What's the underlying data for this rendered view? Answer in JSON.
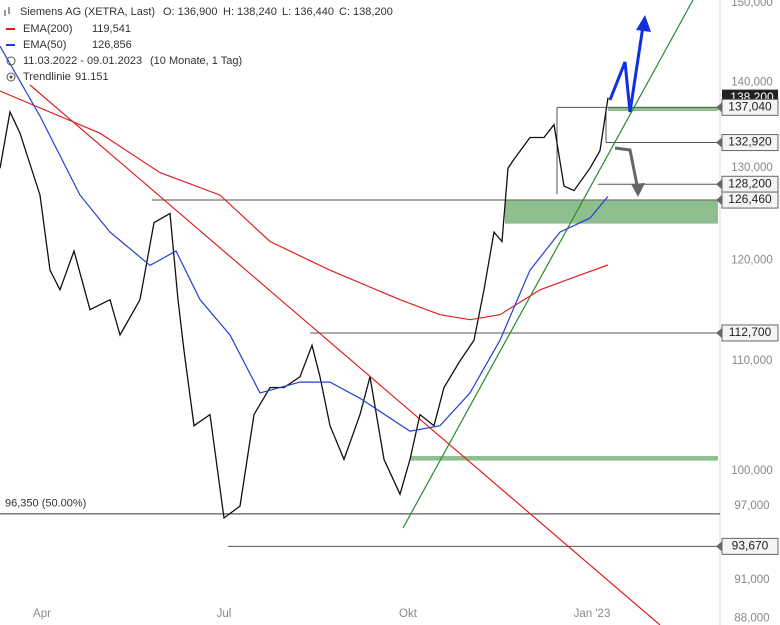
{
  "chart_data": {
    "type": "line",
    "header": {
      "title": "Siemens AG (XETRA, Last)",
      "open": "O: 136,900",
      "high": "H: 138,240",
      "low": "L: 136,440",
      "close": "C: 138,200",
      "period": "11.03.2022 - 09.01.2023",
      "period_note": "(10 Monate, 1 Tag)",
      "trend_name": "Trendlinie",
      "trend_value": "91.151"
    },
    "x": [
      0,
      5,
      10,
      20,
      25,
      30,
      37,
      45,
      55,
      60,
      70,
      77,
      85,
      89,
      92,
      97,
      105,
      112,
      120,
      127,
      135,
      142,
      150,
      156,
      160,
      165,
      172,
      180,
      185,
      192,
      200,
      205,
      210,
      217,
      222,
      230,
      237,
      242,
      247,
      251,
      254,
      257,
      265,
      272,
      277,
      282,
      287,
      295,
      300,
      304
    ],
    "series": [
      {
        "color": "#111111",
        "values": [
          130,
          136.5,
          134,
          127,
          119,
          117,
          121,
          115,
          116,
          112.5,
          116,
          124,
          125,
          116,
          111,
          104,
          105,
          96,
          97,
          105,
          107.5,
          107.5,
          108.5,
          111.5,
          108.5,
          104,
          101,
          105,
          108.5,
          101,
          98,
          101,
          105,
          104,
          107.5,
          110,
          112,
          117,
          123,
          122,
          130,
          131,
          133.5,
          133.5,
          135,
          128,
          127.5,
          130,
          132,
          138.2
        ]
      },
      {
        "name": "EMA(200)",
        "color": "#e02020",
        "value_label": "119,541",
        "x": [
          0,
          50,
          80,
          110,
          135,
          165,
          200,
          220,
          235,
          250,
          270,
          290,
          304
        ],
        "values": [
          139,
          134,
          129.5,
          127,
          122,
          119,
          116,
          114.5,
          114,
          114.5,
          117,
          118.5,
          119.541
        ]
      },
      {
        "name": "EMA(50)",
        "color": "#2040d0",
        "value_label": "126,856",
        "x": [
          0,
          20,
          40,
          55,
          75,
          88,
          100,
          115,
          130,
          150,
          165,
          180,
          205,
          220,
          235,
          250,
          265,
          280,
          295,
          304
        ],
        "values": [
          144.5,
          136,
          127,
          123,
          119.5,
          121,
          116,
          112.5,
          107,
          108,
          108,
          106.5,
          103.5,
          104,
          107,
          112,
          119,
          123,
          124.5,
          126.856
        ]
      }
    ],
    "xlim": [
      0,
      360
    ],
    "xticks": [
      {
        "value": 21,
        "label": "Apr"
      },
      {
        "value": 112,
        "label": "Jul"
      },
      {
        "value": 204,
        "label": "Okt"
      },
      {
        "value": 296,
        "label": "Jan '23"
      }
    ],
    "ylim": [
      87.5,
      150.4
    ],
    "log_y": true,
    "grid": false,
    "yticks": [
      {
        "value": 150,
        "label": "150,000"
      },
      {
        "value": 140,
        "label": "140,000"
      },
      {
        "value": 130,
        "label": "130,000"
      },
      {
        "value": 120,
        "label": "120,000"
      },
      {
        "value": 110,
        "label": "110,000"
      },
      {
        "value": 100,
        "label": "100,000"
      },
      {
        "value": 97,
        "label": "97,000"
      },
      {
        "value": 91,
        "label": "91,000"
      },
      {
        "value": 88,
        "label": "88,000"
      }
    ],
    "last_price": {
      "value": 138.2,
      "label": "138,200"
    },
    "levels": [
      {
        "value": 137.04,
        "label": "137,040"
      },
      {
        "value": 132.92,
        "label": "132,920"
      },
      {
        "value": 128.2,
        "label": "128,200"
      },
      {
        "value": 126.46,
        "label": "126,460"
      },
      {
        "value": 112.7,
        "label": "112,700"
      },
      {
        "value": 93.67,
        "label": "93,670"
      }
    ],
    "fib_level": {
      "value": 96.35,
      "label": "96,350 (50.00%)"
    },
    "zones": [
      {
        "low": 123.9,
        "high": 126.4
      },
      {
        "low": 136.6,
        "high": 137.1
      },
      {
        "low": 100.9,
        "high": 101.3
      }
    ]
  }
}
